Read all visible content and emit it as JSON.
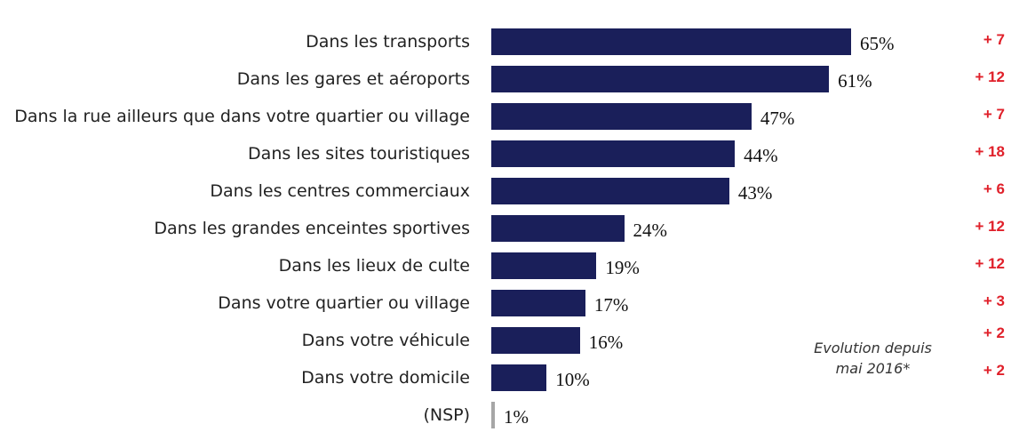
{
  "chart_data": {
    "type": "bar",
    "orientation": "horizontal",
    "categories": [
      "Dans les transports",
      "Dans les gares et aéroports",
      "Dans la rue ailleurs que dans votre quartier ou village",
      "Dans les sites touristiques",
      "Dans les centres commerciaux",
      "Dans les grandes enceintes sportives",
      "Dans les lieux de culte",
      "Dans votre quartier ou village",
      "Dans votre véhicule",
      "Dans votre domicile",
      "(NSP)"
    ],
    "values": [
      65,
      61,
      47,
      44,
      43,
      24,
      19,
      17,
      16,
      10,
      1
    ],
    "value_labels": [
      "65%",
      "61%",
      "47%",
      "44%",
      "43%",
      "24%",
      "19%",
      "17%",
      "16%",
      "10%",
      "1%"
    ],
    "evolution": [
      "+ 7",
      "+ 12",
      "+ 7",
      "+ 18",
      "+ 6",
      "+ 12",
      "+ 12",
      "+ 3",
      "+ 2",
      "+ 2"
    ],
    "evolution_note": "Evolution depuis mai 2016*",
    "colors": {
      "bar": "#1a1f5a",
      "nsp_bar": "#a6a6a6",
      "evolution": "#e0202a"
    },
    "grid": false
  }
}
